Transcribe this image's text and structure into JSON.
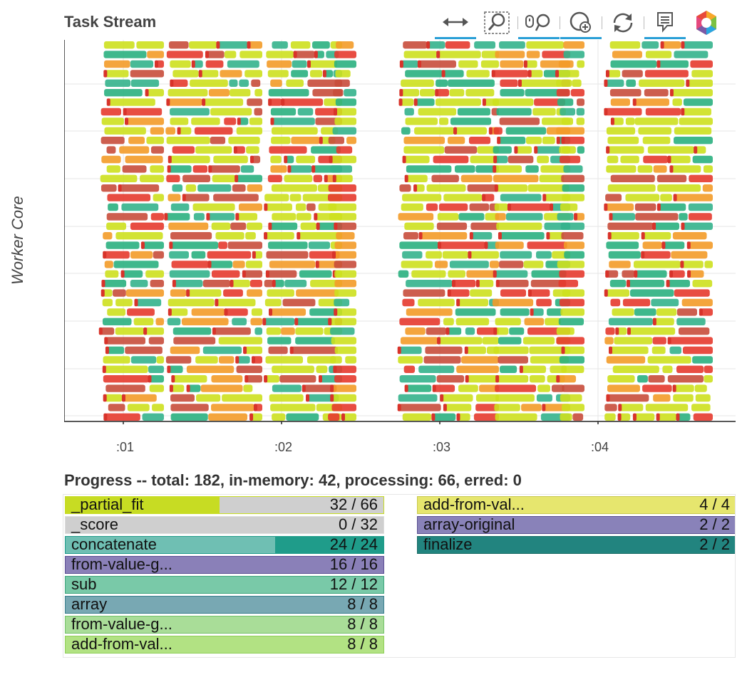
{
  "task_stream": {
    "title": "Task Stream",
    "y_label": "Worker Core",
    "x_ticks": [
      ":01",
      ":02",
      ":03",
      ":04"
    ],
    "task_colors": {
      "_partial_fit": "#cde01e",
      "_score": "#b7b7b7",
      "concatenate": "#34b28c",
      "from-value-get": "#e63a2e",
      "sub": "#2ab07f",
      "array": "#c84c3b",
      "transfer": "#f39b28"
    }
  },
  "toolbar": {
    "tools": [
      {
        "name": "pan",
        "icon": "pan-arrows-icon",
        "active": true
      },
      {
        "name": "box-zoom",
        "icon": "box-zoom-icon",
        "active": false
      },
      {
        "name": "wheel-zoom",
        "icon": "wheel-zoom-icon",
        "active": true
      },
      {
        "name": "zoom-in",
        "icon": "zoom-in-icon",
        "active": true
      },
      {
        "name": "reset",
        "icon": "reset-icon",
        "active": false
      },
      {
        "name": "hover",
        "icon": "hover-tooltip-icon",
        "active": true
      },
      {
        "name": "bokeh",
        "icon": "bokeh-logo-icon",
        "active": false
      }
    ]
  },
  "progress": {
    "title": "Progress -- total: 182, in-memory: 42, processing: 66, erred: 0",
    "left": [
      {
        "name": "_partial_fit",
        "count": "32 / 66",
        "done": 32,
        "total": 66,
        "color": "#c7dc23",
        "bg": "#cfcfcf",
        "border": "#c7dc23"
      },
      {
        "name": "_score",
        "count": "0 / 32",
        "done": 0,
        "total": 32,
        "color": "#9ad4a0",
        "bg": "#cfcfcf",
        "border": "#dddddd"
      },
      {
        "name": "concatenate",
        "count": "24 / 24",
        "done": 24,
        "total": 24,
        "color": "#6fbfb3",
        "bg": "#1f9c8a",
        "border": "#1f9c8a",
        "split": 0.66
      },
      {
        "name": "from-value-g...",
        "count": "16 / 16",
        "done": 16,
        "total": 16,
        "color": "#8a80b8",
        "bg": "#8a80b8",
        "border": "#5b4e93"
      },
      {
        "name": "sub",
        "count": "12 / 12",
        "done": 12,
        "total": 12,
        "color": "#79c9a8",
        "bg": "#79c9a8",
        "border": "#3fa57c"
      },
      {
        "name": "array",
        "count": "8 / 8",
        "done": 8,
        "total": 8,
        "color": "#78a8b3",
        "bg": "#78a8b3",
        "border": "#3b7f8d"
      },
      {
        "name": "from-value-g...",
        "count": "8 / 8",
        "done": 8,
        "total": 8,
        "color": "#a9dd98",
        "bg": "#a9dd98",
        "border": "#74c26a"
      },
      {
        "name": "add-from-val...",
        "count": "8 / 8",
        "done": 8,
        "total": 8,
        "color": "#b2e283",
        "bg": "#b2e283",
        "border": "#8fcf59"
      }
    ],
    "right": [
      {
        "name": "add-from-val...",
        "count": "4 / 4",
        "done": 4,
        "total": 4,
        "color": "#e6e66e",
        "bg": "#e6e66e",
        "border": "#c9c94b"
      },
      {
        "name": "array-original",
        "count": "2 / 2",
        "done": 2,
        "total": 2,
        "color": "#8982b9",
        "bg": "#8982b9",
        "border": "#5a5091"
      },
      {
        "name": "finalize",
        "count": "2 / 2",
        "done": 2,
        "total": 2,
        "color": "#22847f",
        "bg": "#22847f",
        "border": "#1a6b66"
      }
    ]
  }
}
